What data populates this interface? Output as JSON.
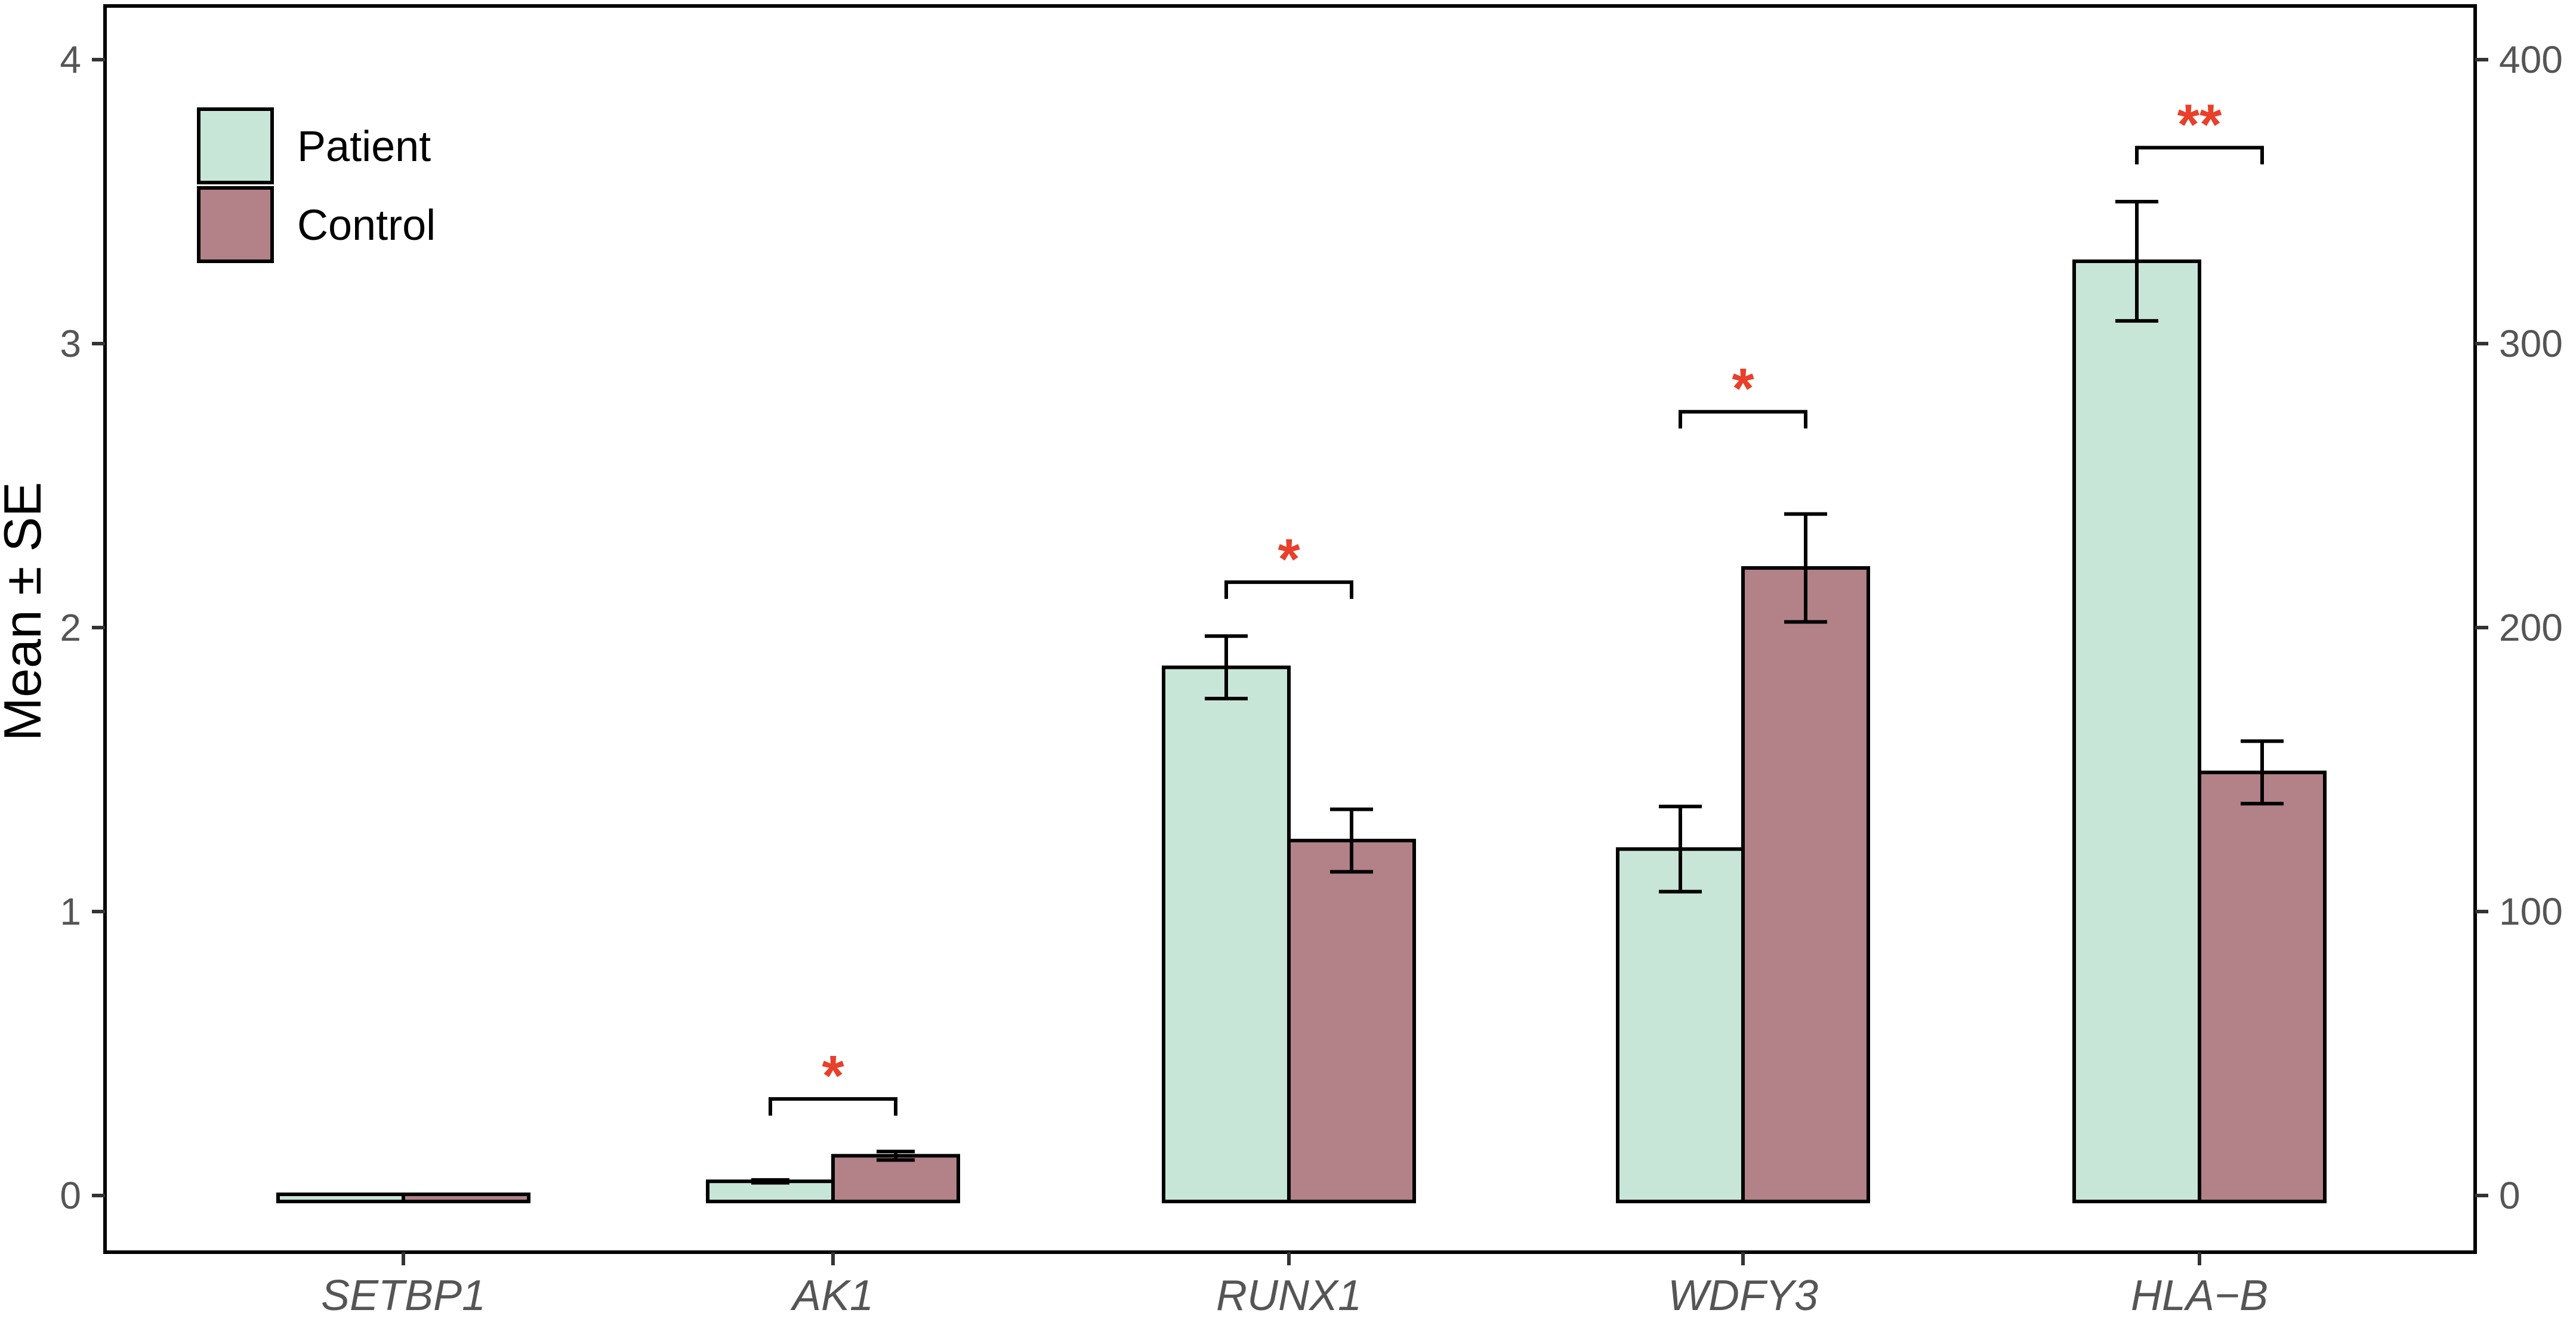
{
  "chart_data": {
    "type": "bar",
    "title": "",
    "ylabel": "Mean ± SE",
    "xlabel": "",
    "categories": [
      "SETBP1",
      "AK1",
      "RUNX1",
      "WDFY3",
      "HLA−B"
    ],
    "series": [
      {
        "name": "Patient",
        "color": "#c8e6d7",
        "values": [
          0.0,
          0.05,
          1.86,
          1.22,
          3.29
        ],
        "se": [
          0.0,
          0.005,
          0.11,
          0.15,
          0.21
        ]
      },
      {
        "name": "Control",
        "color": "#b38188",
        "values": [
          0.0,
          0.14,
          1.25,
          2.21,
          1.49
        ],
        "se": [
          0.0,
          0.015,
          0.11,
          0.19,
          0.11
        ]
      }
    ],
    "ylim": [
      -0.2,
      4.2
    ],
    "yticks": [
      0,
      1,
      2,
      3,
      4
    ],
    "ytick_labels": [
      "0",
      "1",
      "2",
      "3",
      "4"
    ],
    "secondary_yticks": [
      0,
      100,
      200,
      300,
      400
    ],
    "secondary_ytick_labels": [
      "0",
      "100",
      "200",
      "300",
      "400"
    ],
    "significance": [
      {
        "category": "AK1",
        "label": "*",
        "y": 0.34
      },
      {
        "category": "RUNX1",
        "label": "*",
        "y": 2.16
      },
      {
        "category": "WDFY3",
        "label": "*",
        "y": 2.76
      },
      {
        "category": "HLA−B",
        "label": "**",
        "y": 3.69
      }
    ],
    "significance_color": "#e8402a",
    "legend_position": "top-left",
    "grid": false
  }
}
